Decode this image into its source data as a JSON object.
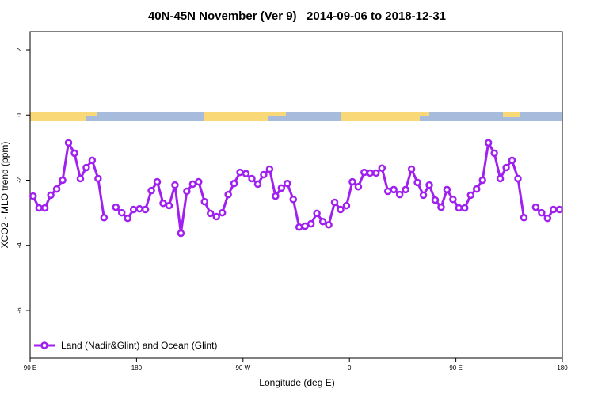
{
  "chart_data": {
    "type": "line",
    "title": "40N-45N November (Ver 9)   2014-09-06 to 2018-12-31",
    "x_label": "Longitude (deg E)",
    "y_label": "XCO2 - MLO trend (ppm)",
    "xlim": [
      90,
      540
    ],
    "xticks": [
      {
        "value": 90,
        "label": "90 E"
      },
      {
        "value": 180,
        "label": "180"
      },
      {
        "value": 270,
        "label": "90 W"
      },
      {
        "value": 360,
        "label": "0"
      },
      {
        "value": 450,
        "label": "90 E"
      },
      {
        "value": 540,
        "label": "180"
      }
    ],
    "ylim": [
      -7.46,
      2.56
    ],
    "yticks": [
      -6,
      -4,
      -2,
      0,
      2
    ],
    "legend": "bottom-left",
    "x": [
      92.5,
      97.5,
      102.5,
      107.5,
      112.5,
      117.5,
      122.5,
      127.5,
      132.5,
      137.5,
      142.5,
      147.5,
      152.5,
      157.5,
      162.5,
      167.5,
      172.5,
      177.5,
      182.5,
      187.5,
      192.5,
      197.5,
      202.5,
      207.5,
      212.5,
      217.5,
      222.5,
      227.5,
      232.5,
      237.5,
      242.5,
      247.5,
      252.5,
      257.5,
      262.5,
      267.5,
      272.5,
      277.5,
      282.5,
      287.5,
      292.5,
      297.5,
      302.5,
      307.5,
      312.5,
      317.5,
      322.5,
      327.5,
      332.5,
      337.5,
      342.5,
      347.5,
      352.5,
      357.5,
      362.5,
      367.5,
      372.5,
      377.5,
      382.5,
      387.5,
      392.5,
      397.5,
      402.5,
      407.5,
      412.5,
      417.5,
      422.5,
      427.5,
      432.5,
      437.5,
      442.5,
      447.5,
      452.5,
      457.5,
      462.5,
      467.5,
      472.5,
      477.5,
      482.5,
      487.5,
      492.5,
      497.5,
      502.5,
      507.5,
      512.5,
      517.5,
      522.5,
      527.5,
      532.5,
      537.5
    ],
    "series": [
      {
        "name": "Land (Nadir&Glint) and Ocean (Glint)",
        "color": "#a020f0",
        "values": [
          -2.49,
          -2.85,
          -2.85,
          -2.46,
          -2.27,
          -2.0,
          -0.85,
          -1.17,
          -1.95,
          -1.61,
          -1.39,
          -1.95,
          -3.15,
          null,
          -2.83,
          -3.0,
          -3.17,
          -2.9,
          -2.88,
          -2.9,
          -2.32,
          -2.05,
          -2.71,
          -2.78,
          -2.15,
          -3.63,
          -2.34,
          -2.12,
          -2.05,
          -2.66,
          -3.02,
          -3.12,
          -3.0,
          -2.44,
          -2.1,
          -1.76,
          -1.8,
          -1.95,
          -2.12,
          -1.83,
          -1.66,
          -2.49,
          -2.24,
          -2.1,
          -2.59,
          -3.44,
          -3.41,
          -3.34,
          -3.02,
          -3.27,
          -3.37,
          -2.68,
          -2.9,
          -2.78,
          -2.05,
          -2.2,
          -1.76,
          -1.78,
          -1.78,
          -1.63,
          -2.34,
          -2.29,
          -2.44,
          -2.29,
          -1.66,
          -2.07,
          -2.46,
          -2.15,
          -2.61,
          -2.83,
          -2.29,
          -2.59,
          -2.85,
          -2.85,
          -2.46,
          -2.27,
          -2.0,
          -0.85,
          -1.17,
          -1.95,
          -1.61,
          -1.39,
          -1.95,
          -3.15,
          null,
          -2.83,
          -3.0,
          -3.17,
          -2.9,
          -2.9
        ]
      }
    ]
  }
}
